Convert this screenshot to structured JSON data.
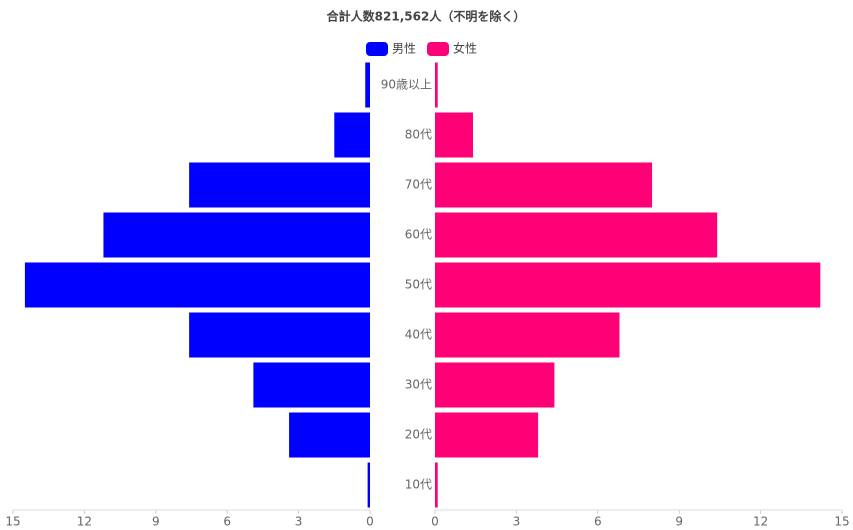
{
  "chart_data": {
    "type": "pyramid",
    "title": "合計人数821,562人（不明を除く）",
    "categories": [
      "90歳以上",
      "80代",
      "70代",
      "60代",
      "50代",
      "40代",
      "30代",
      "20代",
      "10代"
    ],
    "series": [
      {
        "name": "男性",
        "color": "#0000ff",
        "values": [
          0.2,
          1.5,
          7.6,
          11.2,
          14.5,
          7.6,
          4.9,
          3.4,
          0.1
        ]
      },
      {
        "name": "女性",
        "color": "#ff0077",
        "axis": "x2",
        "values": [
          0.1,
          1.4,
          8.0,
          10.4,
          14.2,
          6.8,
          4.4,
          3.8,
          0.1
        ]
      }
    ],
    "xlim": [
      15,
      0
    ],
    "xticks": [
      15,
      12,
      9,
      6,
      3,
      0
    ],
    "x2lim": [
      0,
      15
    ],
    "x2ticks": [
      0,
      3,
      6,
      9,
      12,
      15
    ]
  }
}
